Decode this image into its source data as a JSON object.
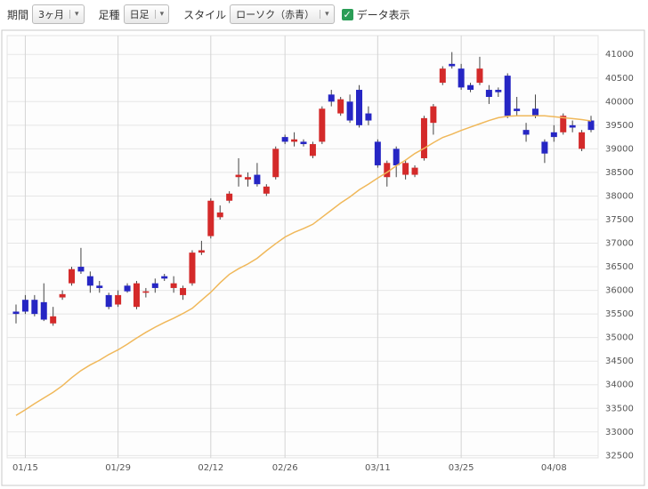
{
  "toolbar": {
    "period_label": "期間",
    "period_value": "3ヶ月",
    "bar_label": "足種",
    "bar_value": "日足",
    "style_label": "スタイル",
    "style_value": "ローソク（赤青）",
    "data_display": "データ表示"
  },
  "chart_data": {
    "type": "candlestick",
    "categories": [
      null,
      "01/15",
      null,
      null,
      null,
      null,
      null,
      null,
      null,
      null,
      null,
      "01/29",
      null,
      null,
      null,
      null,
      null,
      null,
      null,
      null,
      null,
      "02/12",
      null,
      null,
      null,
      null,
      null,
      null,
      null,
      "02/26",
      null,
      null,
      null,
      null,
      null,
      null,
      null,
      null,
      null,
      "03/11",
      null,
      null,
      null,
      null,
      null,
      null,
      null,
      null,
      "03/25",
      null,
      null,
      null,
      null,
      null,
      null,
      null,
      null,
      null,
      "04/08",
      null,
      null,
      null,
      null
    ],
    "open": [
      35550,
      35800,
      35800,
      35750,
      35300,
      35850,
      36150,
      36500,
      36300,
      36100,
      35900,
      35700,
      36100,
      35650,
      35950,
      36150,
      36300,
      36050,
      35900,
      36150,
      36800,
      37150,
      37550,
      37900,
      38400,
      38350,
      38450,
      38050,
      38400,
      39250,
      39150,
      39150,
      38850,
      39150,
      40150,
      39750,
      40000,
      40250,
      39750,
      39150,
      38400,
      39000,
      38450,
      38450,
      38800,
      39550,
      40400,
      40800,
      40700,
      40350,
      40400,
      40250,
      40250,
      40550,
      39850,
      39400,
      39850,
      39150,
      39350,
      39350,
      39500,
      39000,
      39600
    ],
    "high": [
      35700,
      35900,
      35900,
      36150,
      35650,
      36000,
      36500,
      36900,
      36400,
      36200,
      35950,
      36000,
      36150,
      36200,
      36050,
      36250,
      36350,
      36300,
      36100,
      36850,
      37050,
      37950,
      37800,
      38100,
      38800,
      38500,
      38700,
      38250,
      39050,
      39300,
      39350,
      39200,
      39150,
      39900,
      40250,
      40100,
      40150,
      40350,
      39900,
      39200,
      38750,
      39050,
      38750,
      38650,
      39700,
      39950,
      40750,
      41050,
      40800,
      40400,
      40950,
      40350,
      40300,
      40600,
      40100,
      39550,
      40150,
      39200,
      39500,
      39750,
      39600,
      39400,
      39700
    ],
    "low": [
      35300,
      35500,
      35450,
      35350,
      35250,
      35800,
      36100,
      36350,
      35950,
      35950,
      35600,
      35650,
      35950,
      35600,
      35850,
      35950,
      36200,
      35950,
      35800,
      36100,
      36750,
      37100,
      37500,
      37850,
      38200,
      38200,
      38200,
      38000,
      38350,
      39100,
      39050,
      39050,
      38800,
      39100,
      39900,
      39700,
      39550,
      39450,
      39500,
      38600,
      38200,
      38400,
      38350,
      38400,
      38750,
      39300,
      40350,
      40700,
      40250,
      40200,
      40350,
      39950,
      40100,
      39650,
      39700,
      39150,
      39650,
      38700,
      39150,
      39300,
      39350,
      38950,
      39350
    ],
    "close": [
      35500,
      35550,
      35500,
      35380,
      35450,
      35920,
      36450,
      36400,
      36100,
      36050,
      35650,
      35900,
      35980,
      36150,
      35980,
      36050,
      36250,
      36150,
      36050,
      36800,
      36850,
      37900,
      37650,
      38050,
      38450,
      38400,
      38250,
      38200,
      39000,
      39150,
      39200,
      39100,
      39100,
      39850,
      40000,
      40050,
      39600,
      39500,
      39600,
      38650,
      38700,
      38650,
      38700,
      38600,
      39650,
      39900,
      40700,
      40750,
      40300,
      40250,
      40700,
      40100,
      40200,
      39700,
      39800,
      39300,
      39700,
      38900,
      39250,
      39700,
      39450,
      39350,
      39400
    ],
    "up_color": "#d42a2a",
    "down_color": "#2626c4",
    "wick_color": "#444444",
    "ma": {
      "color": "#f0b85a",
      "values": [
        33350,
        33470,
        33600,
        33720,
        33840,
        33980,
        34150,
        34300,
        34420,
        34520,
        34640,
        34740,
        34860,
        34990,
        35110,
        35220,
        35320,
        35410,
        35510,
        35620,
        35790,
        35960,
        36160,
        36340,
        36460,
        36560,
        36680,
        36840,
        36990,
        37130,
        37230,
        37310,
        37400,
        37550,
        37700,
        37850,
        37980,
        38130,
        38250,
        38380,
        38500,
        38640,
        38760,
        38900,
        39010,
        39130,
        39240,
        39310,
        39390,
        39460,
        39530,
        39600,
        39660,
        39690,
        39700,
        39700,
        39700,
        39700,
        39680,
        39660,
        39640,
        39620,
        39590
      ]
    },
    "ylim": [
      32450,
      41400
    ],
    "yticks": [
      32500,
      33000,
      33500,
      34000,
      34500,
      35000,
      35500,
      36000,
      36500,
      37000,
      37500,
      38000,
      38500,
      39000,
      39500,
      40000,
      40500,
      41000
    ],
    "grid": true
  }
}
